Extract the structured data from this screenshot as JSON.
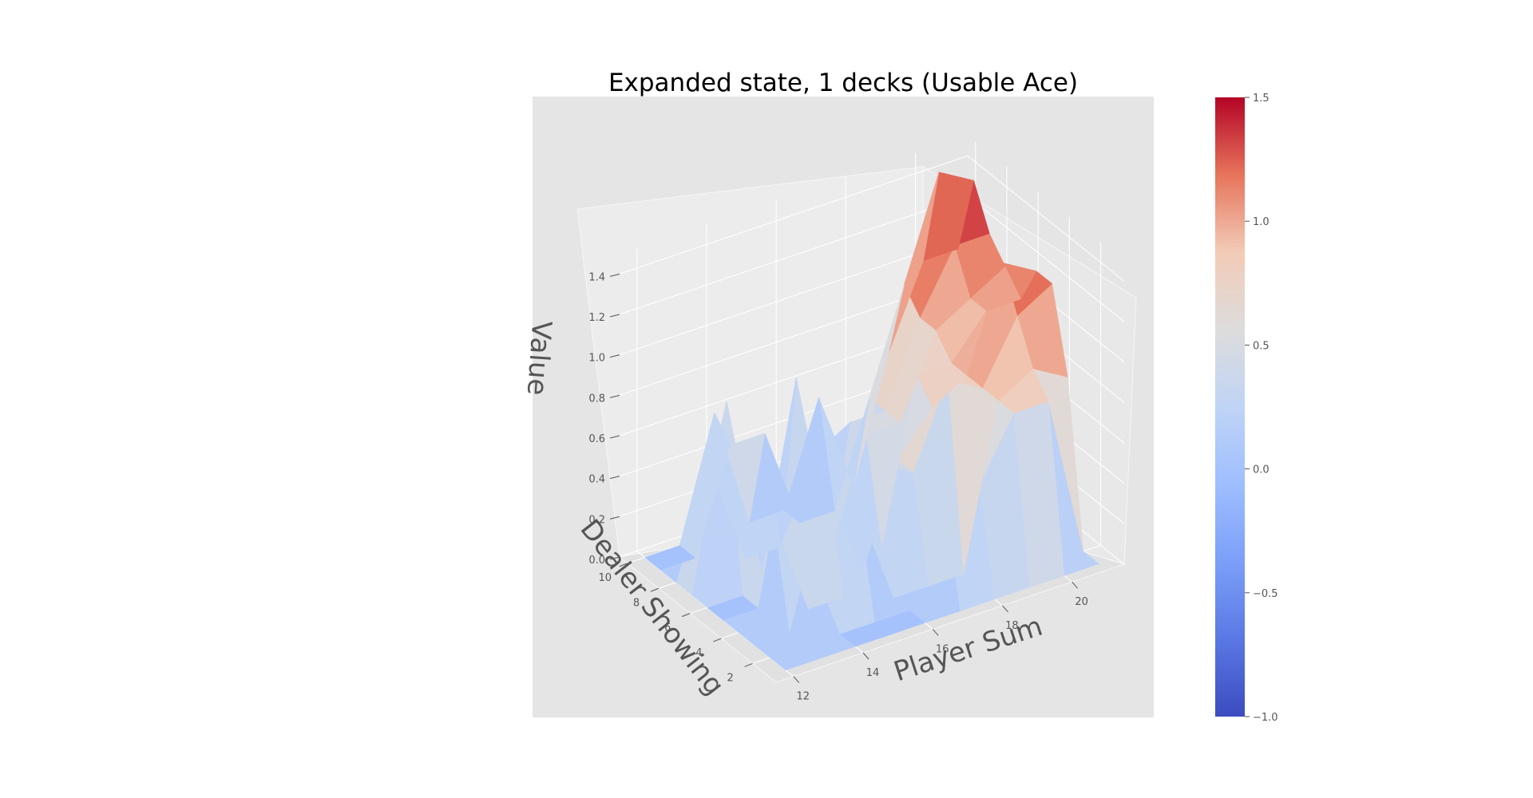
{
  "chart_data": {
    "type": "surface",
    "title": "Expanded state, 1 decks (Usable Ace)",
    "xlabel": "Player Sum",
    "ylabel": "Dealer Showing",
    "zlabel": "Value",
    "x": [
      12,
      13,
      14,
      15,
      16,
      17,
      18,
      19,
      20,
      21
    ],
    "y": [
      1,
      2,
      3,
      4,
      5,
      6,
      7,
      8,
      9,
      10
    ],
    "x_ticks": [
      12,
      14,
      16,
      18,
      20
    ],
    "y_ticks": [
      2,
      4,
      6,
      8,
      10
    ],
    "z_ticks": [
      "0.0",
      "0.2",
      "0.4",
      "0.6",
      "0.8",
      "1.0",
      "1.2",
      "1.4"
    ],
    "zlim": [
      0,
      1.5
    ],
    "colormap": "coolwarm",
    "clim": [
      -1.0,
      1.5
    ],
    "colorbar_ticks": [
      "−1.0",
      "−0.5",
      "0.0",
      "0.5",
      "1.0",
      "1.5"
    ],
    "grid": true,
    "values_by_player_sum": [
      [
        0,
        0,
        0,
        0,
        0,
        0,
        0,
        0,
        0,
        0
      ],
      [
        0,
        0.5,
        0.0,
        0.5,
        0.0,
        0.0,
        0.9,
        0.5,
        0.0,
        0.0
      ],
      [
        0,
        0.0,
        0.6,
        0.0,
        0.9,
        0.5,
        0.0,
        0.0,
        0.5,
        0.6
      ],
      [
        0,
        0.0,
        0.5,
        0.0,
        0.5,
        0.0,
        0.9,
        0.0,
        0.5,
        0.0
      ],
      [
        0,
        0.0,
        0.0,
        0.6,
        0.0,
        0.5,
        0.0,
        0.4,
        0.0,
        0.0
      ],
      [
        0,
        0.5,
        0.0,
        0.5,
        0.5,
        0.0,
        0.5,
        0.5,
        0.0,
        0.5
      ],
      [
        0,
        0.5,
        0.0,
        0.9,
        0.7,
        0.8,
        0.5,
        0.5,
        0.5,
        0.0
      ],
      [
        0,
        0.8,
        0.8,
        0.8,
        0.8,
        0.8,
        0.9,
        0.9,
        1.0,
        0.6
      ],
      [
        0,
        0.8,
        0.9,
        1.1,
        1.3,
        1.0,
        1.0,
        1.2,
        1.5,
        1.0
      ],
      [
        0,
        0.0,
        0.8,
        1.2,
        1.2,
        1.0,
        1.1,
        1.2,
        1.4,
        1.0
      ]
    ]
  }
}
